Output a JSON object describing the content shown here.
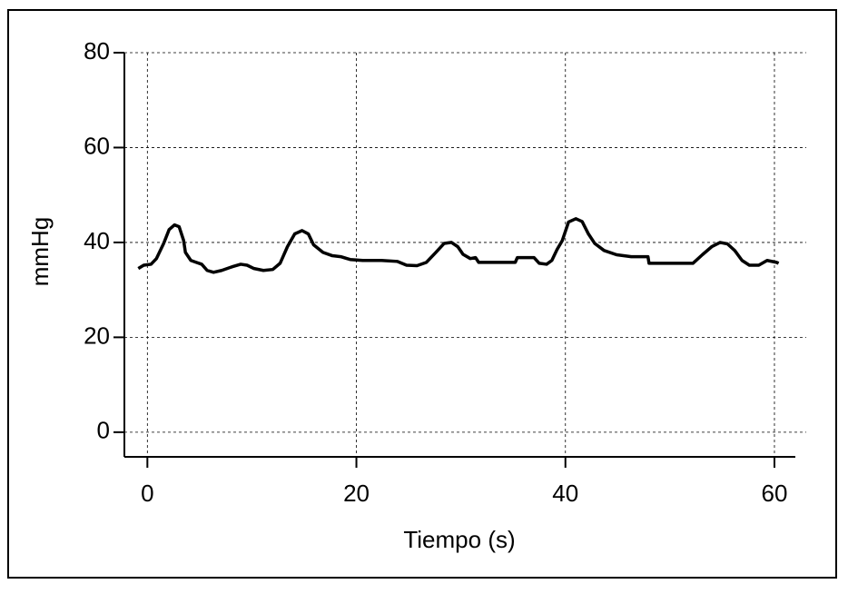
{
  "chart_data": {
    "type": "line",
    "x_label": "Tiempo (s)",
    "y_label": "mmHg",
    "x": [
      -0.87,
      -0.35,
      0.35,
      0.87,
      1.56,
      2.08,
      2.6,
      3.04,
      3.47,
      3.64,
      4.16,
      4.68,
      5.2,
      5.72,
      6.33,
      7.11,
      8.15,
      8.93,
      9.54,
      10.2,
      11.1,
      12.0,
      12.7,
      13.4,
      14.1,
      14.8,
      15.4,
      15.9,
      16.8,
      17.7,
      18.5,
      19.4,
      20.6,
      22.4,
      23.9,
      24.8,
      25.8,
      26.7,
      27.6,
      28.4,
      29.1,
      29.7,
      30.2,
      30.9,
      31.4,
      31.7,
      33.5,
      35.2,
      35.4,
      36.3,
      37.0,
      37.5,
      38.2,
      38.7,
      39.2,
      39.7,
      40.3,
      41.0,
      41.6,
      42.2,
      42.8,
      43.7,
      44.9,
      46.3,
      47.9,
      48.0,
      50.1,
      52.2,
      53.1,
      54.0,
      54.8,
      55.5,
      56.2,
      56.9,
      57.6,
      58.5,
      59.3,
      60.2,
      60.4
    ],
    "values": [
      34.5,
      35.2,
      35.4,
      36.6,
      39.8,
      42.7,
      43.7,
      43.3,
      40.4,
      37.9,
      36.2,
      35.8,
      35.4,
      34.1,
      33.7,
      34.1,
      34.9,
      35.4,
      35.2,
      34.5,
      34.1,
      34.3,
      35.6,
      39.1,
      41.8,
      42.5,
      41.8,
      39.5,
      37.9,
      37.2,
      37.0,
      36.4,
      36.2,
      36.2,
      36.0,
      35.2,
      35.1,
      35.8,
      37.9,
      39.8,
      40.0,
      39.1,
      37.5,
      36.6,
      36.8,
      35.8,
      35.8,
      35.8,
      36.8,
      36.8,
      36.8,
      35.6,
      35.4,
      36.2,
      38.5,
      40.4,
      44.3,
      45.0,
      44.4,
      41.8,
      39.8,
      38.3,
      37.4,
      37.0,
      37.0,
      35.6,
      35.6,
      35.6,
      37.4,
      39.1,
      40.0,
      39.7,
      38.3,
      36.2,
      35.2,
      35.2,
      36.2,
      35.8,
      35.6
    ],
    "color": "#000000",
    "xlim": [
      -2.2,
      62
    ],
    "ylim": [
      -5.2,
      80
    ],
    "xticks": [
      0,
      20,
      40,
      60
    ],
    "yticks": [
      0,
      20,
      40,
      60,
      80
    ],
    "grid": true
  }
}
